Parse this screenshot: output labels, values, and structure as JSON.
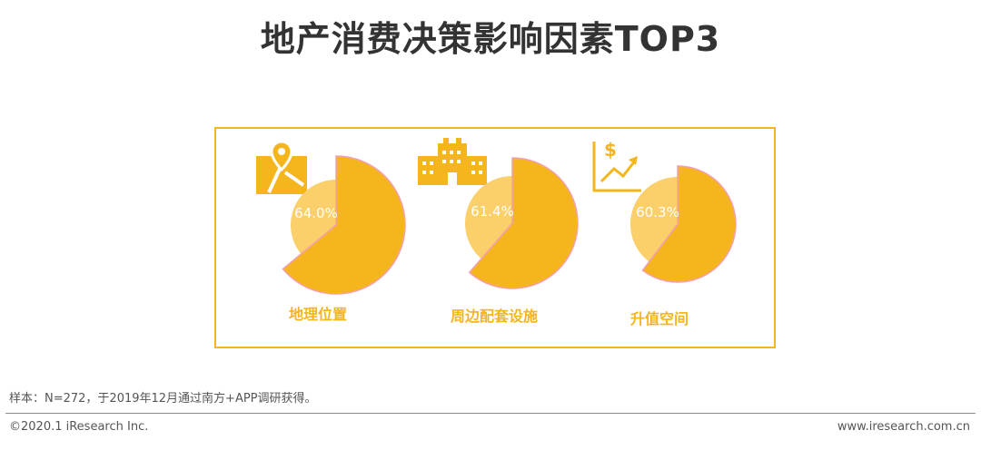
{
  "title": "地产消费决策影响因素TOP3",
  "colors": {
    "accent": "#f5b51c",
    "light": "#fbcf6a",
    "outline": "#f2a0b4",
    "text": "#333333"
  },
  "chart_data": {
    "type": "pie",
    "title": "地产消费决策影响因素TOP3",
    "unit": "%",
    "items": [
      {
        "label": "地理位置",
        "value": 64.0,
        "value_label": "64.0%",
        "icon": "map-pin-icon"
      },
      {
        "label": "周边配套设施",
        "value": 61.4,
        "value_label": "61.4%",
        "icon": "building-icon"
      },
      {
        "label": "升值空间",
        "value": 60.3,
        "value_label": "60.3%",
        "icon": "dollar-growth-icon"
      }
    ]
  },
  "footer": {
    "source": "样本：N=272，于2019年12月通过南方+APP调研获得。",
    "copyright": "©2020.1 iResearch Inc.",
    "website": "www.iresearch.com.cn"
  }
}
